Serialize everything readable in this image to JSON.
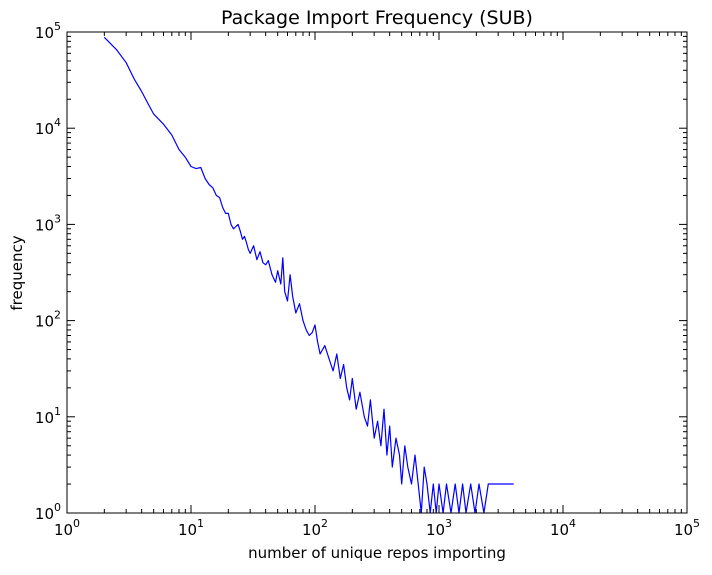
{
  "chart_data": {
    "type": "line",
    "title": "Package Import Frequency (SUB)",
    "xlabel": "number of unique repos importing",
    "ylabel": "frequency",
    "x_scale": "log",
    "y_scale": "log",
    "xlim": [
      1,
      100000
    ],
    "ylim": [
      1,
      100000
    ],
    "x_ticks": [
      1,
      10,
      100,
      1000,
      10000,
      100000
    ],
    "y_ticks": [
      1,
      10,
      100,
      1000,
      10000,
      100000
    ],
    "tick_base": "10",
    "x_tick_exponents": [
      "0",
      "1",
      "2",
      "3",
      "4",
      "5"
    ],
    "y_tick_exponents": [
      "0",
      "1",
      "2",
      "3",
      "4",
      "5"
    ],
    "grid": false,
    "legend": "none",
    "line_color": "#0000ff",
    "series": [
      {
        "x": [
          2,
          2.5,
          3,
          3.5,
          4,
          4.5,
          5,
          6,
          7,
          8,
          9,
          10,
          11,
          12,
          13,
          14,
          15,
          16,
          17,
          18,
          19,
          20,
          21,
          22,
          23,
          24,
          25,
          26,
          27,
          28,
          29,
          30,
          32,
          34,
          36,
          38,
          40,
          42,
          45,
          48,
          50,
          53,
          55,
          57,
          60,
          63,
          66,
          70,
          75,
          80,
          85,
          90,
          95,
          100,
          105,
          110,
          120,
          130,
          140,
          150,
          160,
          170,
          180,
          190,
          200,
          215,
          230,
          250,
          265,
          280,
          300,
          320,
          340,
          360,
          380,
          400,
          420,
          450,
          480,
          500,
          530,
          560,
          600,
          640,
          680,
          720,
          760,
          800,
          850,
          900,
          950,
          1000,
          1080,
          1150,
          1250,
          1350,
          1450,
          1550,
          1650,
          1800,
          1950,
          2100,
          2300,
          2500,
          3000,
          4000
        ],
        "y": [
          88000,
          66000,
          48000,
          32000,
          24000,
          18000,
          14000,
          11000,
          8500,
          6000,
          5000,
          4000,
          3800,
          3900,
          3000,
          2600,
          2400,
          2000,
          1900,
          1500,
          1300,
          1300,
          1000,
          900,
          950,
          1000,
          850,
          700,
          750,
          650,
          550,
          500,
          600,
          430,
          520,
          400,
          380,
          420,
          300,
          250,
          330,
          240,
          450,
          200,
          160,
          300,
          180,
          120,
          150,
          100,
          80,
          70,
          75,
          90,
          60,
          45,
          55,
          40,
          30,
          45,
          25,
          35,
          20,
          15,
          25,
          12,
          18,
          10,
          8,
          15,
          6,
          9,
          5,
          12,
          4,
          8,
          3,
          6,
          4,
          2,
          5,
          3,
          2,
          4,
          2,
          1,
          3,
          2,
          1,
          2,
          1,
          2,
          1,
          2,
          1,
          2,
          1,
          2,
          1,
          2,
          1,
          2,
          1,
          2,
          2,
          2
        ]
      }
    ]
  }
}
